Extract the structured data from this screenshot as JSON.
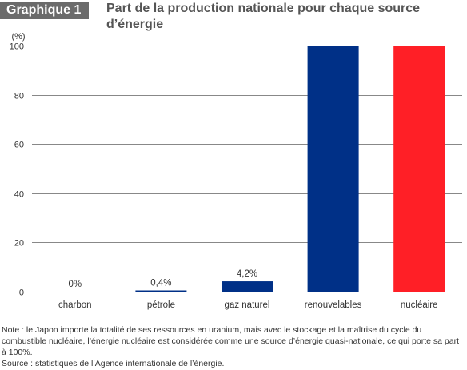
{
  "header": {
    "badge": "Graphique 1",
    "title": "Part de la production nationale pour chaque source d’énergie"
  },
  "chart_data": {
    "type": "bar",
    "unit_label": "(%)",
    "categories": [
      "charbon",
      "pétrole",
      "gaz naturel",
      "renouvelables",
      "nucléaire"
    ],
    "values": [
      0,
      0.4,
      4.2,
      100,
      100
    ],
    "data_labels": [
      "0%",
      "0,4%",
      "4,2%",
      "",
      ""
    ],
    "colors": [
      "#003087",
      "#003087",
      "#003087",
      "#003087",
      "#ff1f26"
    ],
    "ylim": [
      0,
      100
    ],
    "yticks": [
      0,
      20,
      40,
      60,
      80,
      100
    ],
    "grid": true
  },
  "notes": {
    "note": "Note : le Japon importe la totalité de ses ressources en uranium, mais avec le stockage et la maîtrise du cycle du combustible nucléaire, l’énergie nucléaire est considérée comme une source d’énergie quasi-nationale, ce qui porte sa part à 100%.",
    "source": "Source : statistiques de l’Agence internationale de l’énergie."
  }
}
